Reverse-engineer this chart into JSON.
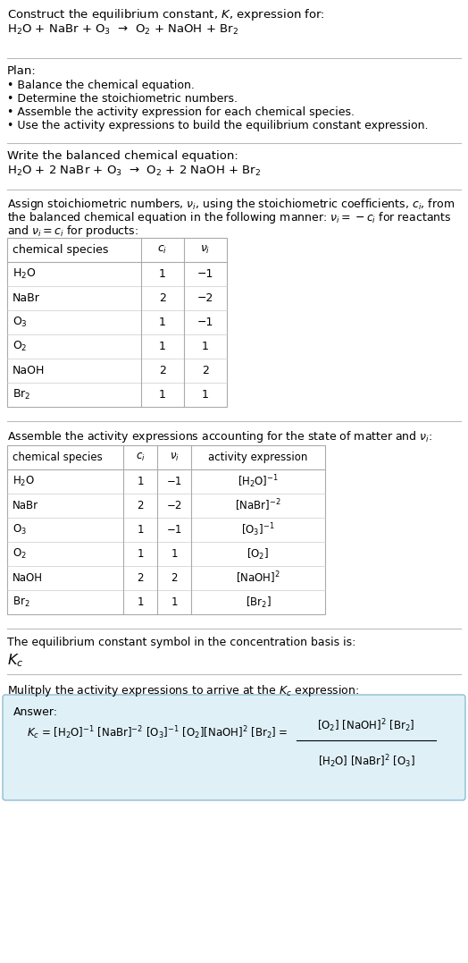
{
  "bg_color": "#ffffff",
  "text_color": "#000000",
  "title_line1": "Construct the equilibrium constant, $K$, expression for:",
  "reaction_unbalanced": "H$_2$O + NaBr + O$_3$  →  O$_2$ + NaOH + Br$_2$",
  "plan_header": "Plan:",
  "plan_bullets": [
    "• Balance the chemical equation.",
    "• Determine the stoichiometric numbers.",
    "• Assemble the activity expression for each chemical species.",
    "• Use the activity expressions to build the equilibrium constant expression."
  ],
  "balanced_header": "Write the balanced chemical equation:",
  "reaction_balanced": "H$_2$O + 2 NaBr + O$_3$  →  O$_2$ + 2 NaOH + Br$_2$",
  "stoich_lines": [
    "Assign stoichiometric numbers, $\\nu_i$, using the stoichiometric coefficients, $c_i$, from",
    "the balanced chemical equation in the following manner: $\\nu_i = -c_i$ for reactants",
    "and $\\nu_i = c_i$ for products:"
  ],
  "table1_headers": [
    "chemical species",
    "$c_i$",
    "$\\nu_i$"
  ],
  "table1_rows": [
    [
      "H$_2$O",
      "1",
      "−1"
    ],
    [
      "NaBr",
      "2",
      "−2"
    ],
    [
      "O$_3$",
      "1",
      "−1"
    ],
    [
      "O$_2$",
      "1",
      "1"
    ],
    [
      "NaOH",
      "2",
      "2"
    ],
    [
      "Br$_2$",
      "1",
      "1"
    ]
  ],
  "activity_header": "Assemble the activity expressions accounting for the state of matter and $\\nu_i$:",
  "table2_headers": [
    "chemical species",
    "$c_i$",
    "$\\nu_i$",
    "activity expression"
  ],
  "table2_rows": [
    [
      "H$_2$O",
      "1",
      "−1",
      "[H$_2$O]$^{-1}$"
    ],
    [
      "NaBr",
      "2",
      "−2",
      "[NaBr]$^{-2}$"
    ],
    [
      "O$_3$",
      "1",
      "−1",
      "[O$_3$]$^{-1}$"
    ],
    [
      "O$_2$",
      "1",
      "1",
      "[O$_2$]"
    ],
    [
      "NaOH",
      "2",
      "2",
      "[NaOH]$^2$"
    ],
    [
      "Br$_2$",
      "1",
      "1",
      "[Br$_2$]"
    ]
  ],
  "kc_symbol_text": "The equilibrium constant symbol in the concentration basis is:",
  "kc_symbol": "$K_c$",
  "multiply_text": "Mulitply the activity expressions to arrive at the $K_c$ expression:",
  "answer_box_color": "#dff0f7",
  "answer_box_border": "#90bdd4",
  "answer_label": "Answer:",
  "kc_expr_full": "$K_c$ = [H$_2$O]$^{-1}$ [NaBr]$^{-2}$ [O$_3$]$^{-1}$ [O$_2$][NaOH]$^2$ [Br$_2$] =",
  "fraction_numerator": "[O$_2$] [NaOH]$^2$ [Br$_2$]",
  "fraction_denominator": "[H$_2$O] [NaBr]$^2$ [O$_3$]"
}
